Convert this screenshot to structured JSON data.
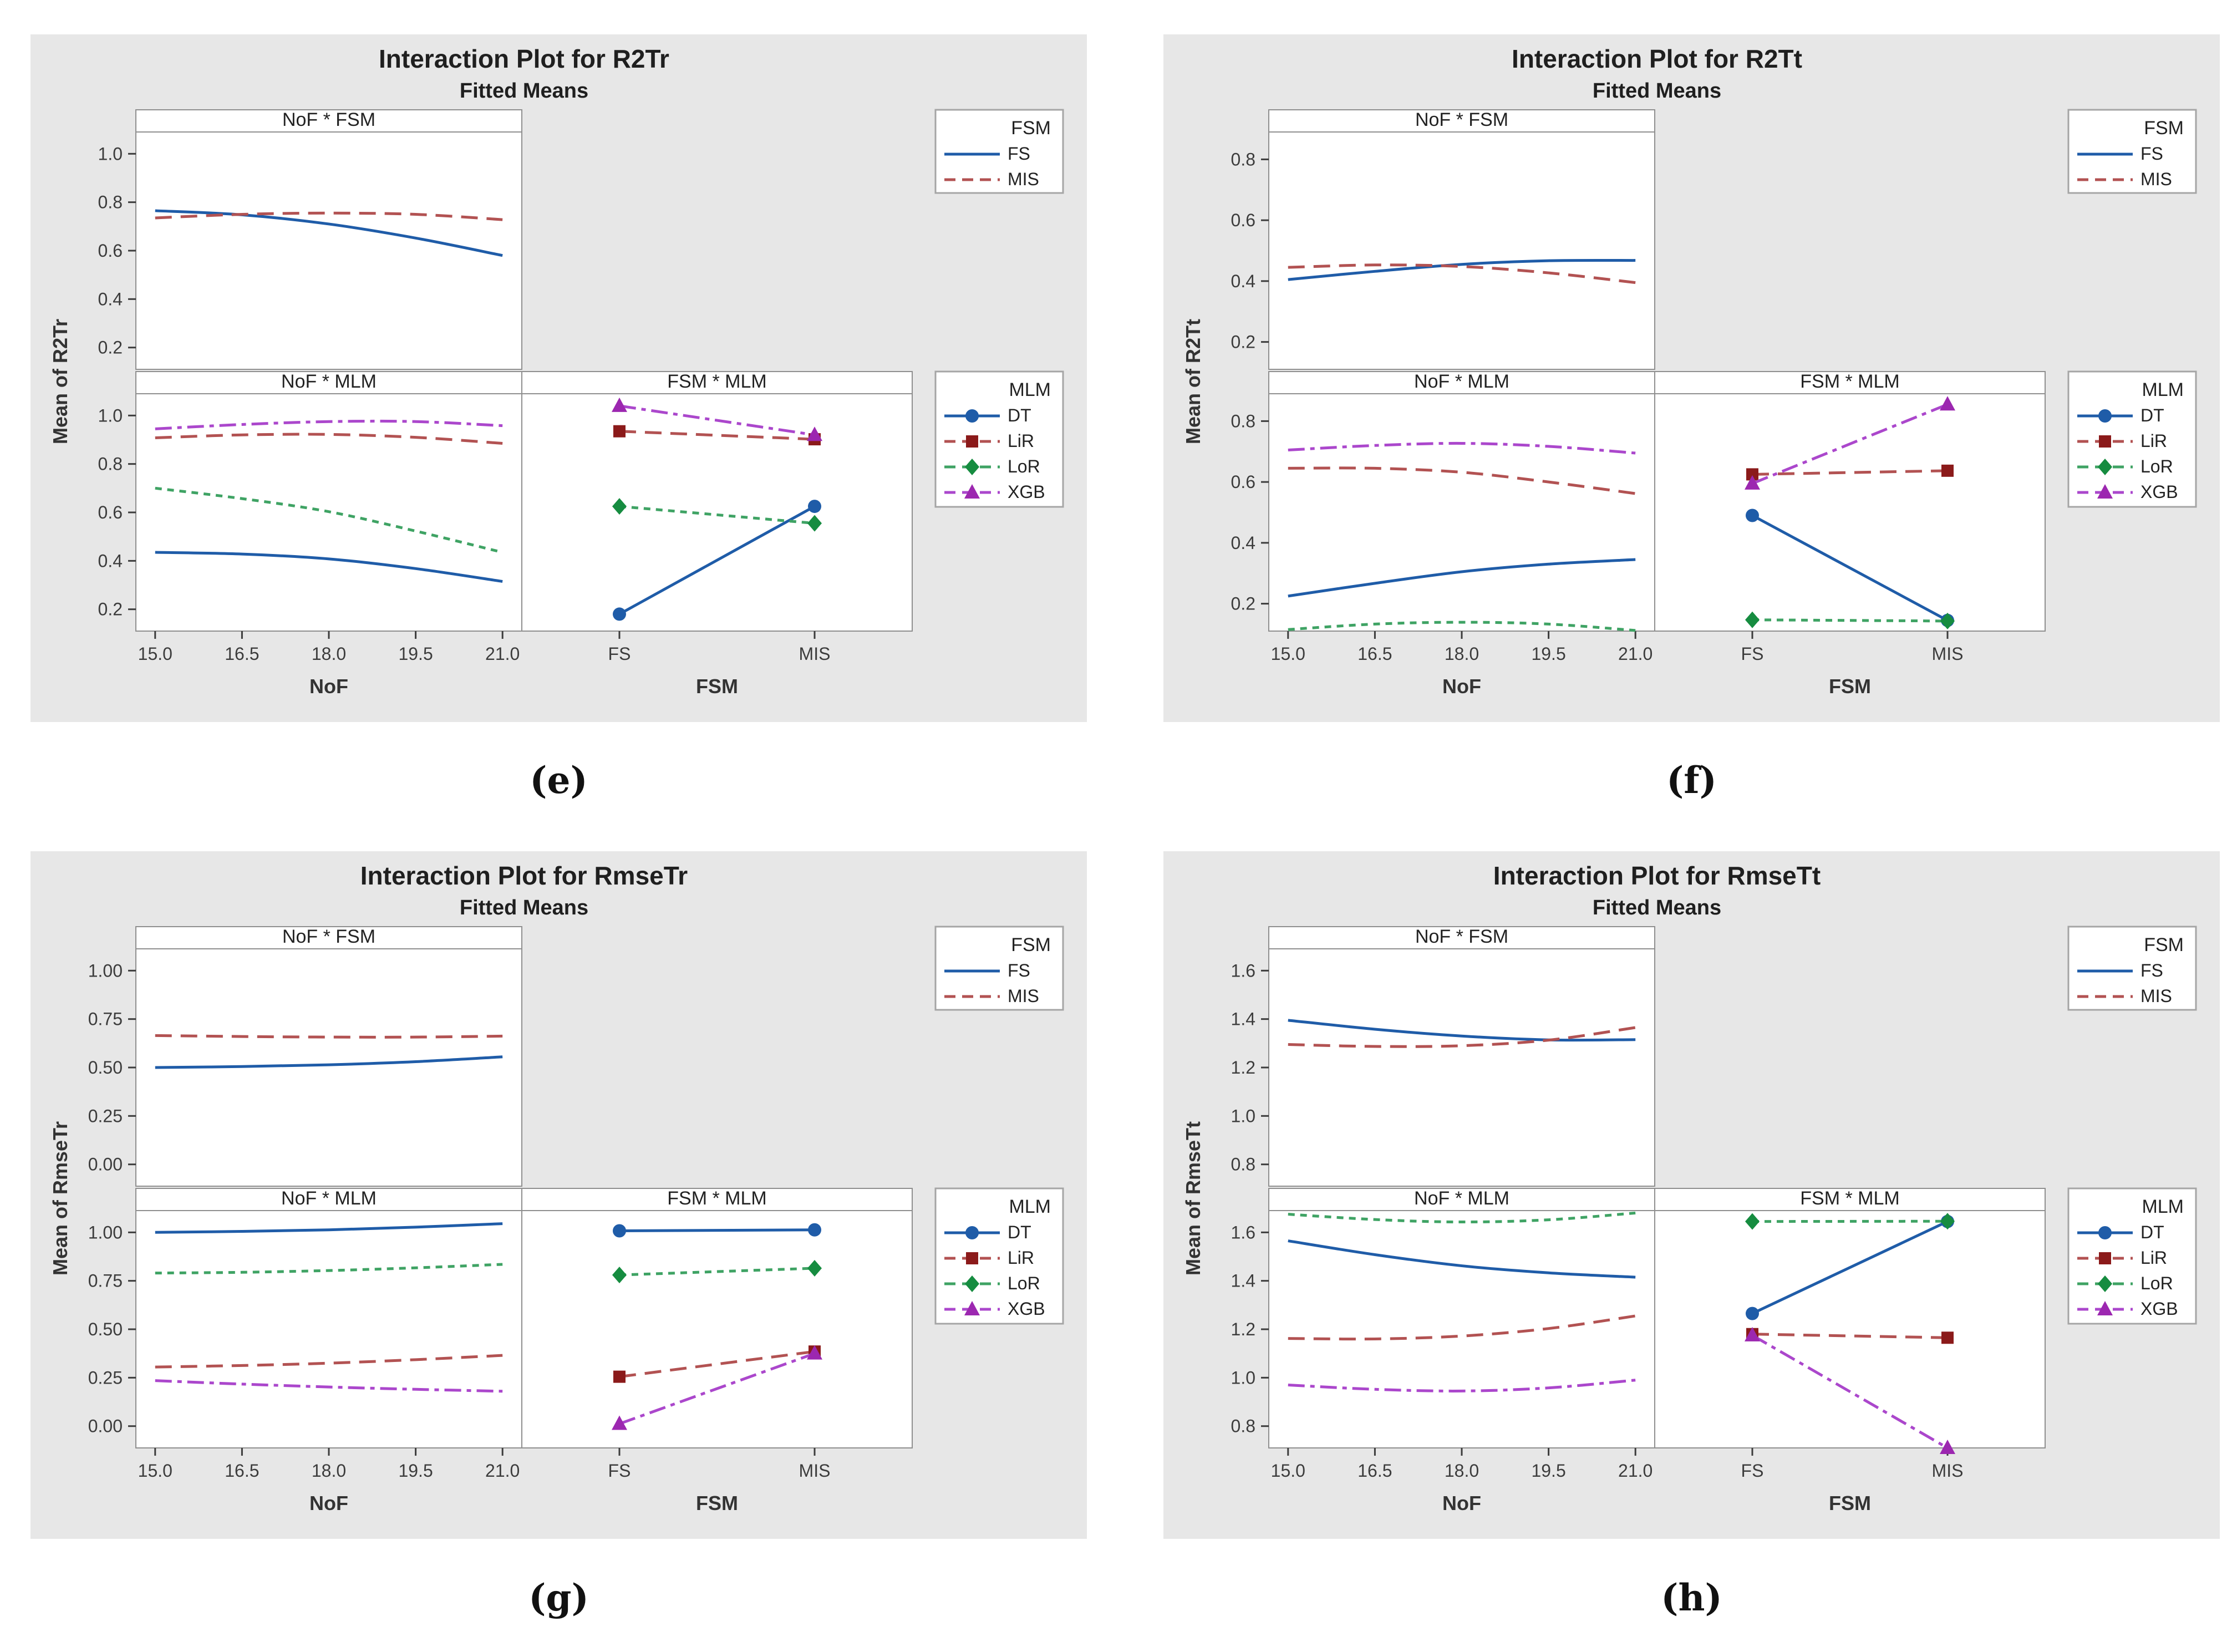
{
  "colors": {
    "panel_bg": "#e7e7e7",
    "plot_bg": "#ffffff",
    "border": "#8f8f8f",
    "tick_text": "#3c3c3c",
    "title_text": "#1f1f1f",
    "axis_label_text": "#333333"
  },
  "series_styles": {
    "FS": {
      "color": "#1F5CA8",
      "dash": "",
      "marker": "none"
    },
    "MIS": {
      "color": "#B25252",
      "dash": "30,16",
      "marker": "none"
    },
    "DT": {
      "color": "#1F5CA8",
      "dash": "",
      "marker": "circle",
      "marker_color": "#1F5CA8"
    },
    "LiR": {
      "color": "#B25252",
      "dash": "30,16",
      "marker": "square",
      "marker_color": "#8B1A1A"
    },
    "LoR": {
      "color": "#3FA364",
      "dash": "12,10",
      "marker": "diamond",
      "marker_color": "#168C40"
    },
    "XGB": {
      "color": "#AB47CC",
      "dash": "30,10,8,10",
      "marker": "triangle",
      "marker_color": "#9C27B0"
    }
  },
  "chart_data": [
    {
      "id": "e",
      "type": "line",
      "caption": "(e)",
      "title": "Interaction Plot for R2Tr",
      "subtitle": "Fitted Means",
      "y_axis_label": "Mean of R2Tr",
      "yticks": [
        0.2,
        0.4,
        0.6,
        0.8,
        1.0
      ],
      "ytick_labels": [
        "0.2",
        "0.4",
        "0.6",
        "0.8",
        "1.0"
      ],
      "x_numeric": {
        "label": "NoF",
        "values": [
          15,
          16.5,
          18,
          19.5,
          21
        ],
        "tick_labels": [
          "15.0",
          "16.5",
          "18.0",
          "19.5",
          "21.0"
        ]
      },
      "x_categorical": {
        "label": "FSM",
        "categories": [
          "FS",
          "MIS"
        ]
      },
      "facets": {
        "top": "NoF * FSM",
        "bottom_left": "NoF * MLM",
        "bottom_right": "FSM * MLM"
      },
      "legend_fsm": {
        "title": "FSM",
        "entries": [
          "FS",
          "MIS"
        ]
      },
      "legend_mlm": {
        "title": "MLM",
        "entries": [
          "DT",
          "LiR",
          "LoR",
          "XGB"
        ]
      },
      "series_top": {
        "FS": [
          0.765,
          0.748,
          0.71,
          0.652,
          0.58
        ],
        "MIS": [
          0.735,
          0.75,
          0.755,
          0.75,
          0.728
        ]
      },
      "series_bottom_left": {
        "DT": [
          0.435,
          0.428,
          0.408,
          0.368,
          0.315
        ],
        "LiR": [
          0.908,
          0.92,
          0.922,
          0.91,
          0.885
        ],
        "LoR": [
          0.7,
          0.657,
          0.603,
          0.523,
          0.435
        ],
        "XGB": [
          0.945,
          0.963,
          0.975,
          0.975,
          0.958
        ]
      },
      "series_bottom_right": {
        "DT": [
          0.18,
          0.625
        ],
        "LiR": [
          0.935,
          0.902
        ],
        "LoR": [
          0.625,
          0.555
        ],
        "XGB": [
          1.04,
          0.92
        ]
      }
    },
    {
      "id": "f",
      "type": "line",
      "caption": "(f)",
      "title": "Interaction Plot for R2Tt",
      "subtitle": "Fitted Means",
      "y_axis_label": "Mean of R2Tt",
      "yticks": [
        0.2,
        0.4,
        0.6,
        0.8
      ],
      "ytick_labels": [
        "0.2",
        "0.4",
        "0.6",
        "0.8"
      ],
      "x_numeric": {
        "label": "NoF",
        "values": [
          15,
          16.5,
          18,
          19.5,
          21
        ],
        "tick_labels": [
          "15.0",
          "16.5",
          "18.0",
          "19.5",
          "21.0"
        ]
      },
      "x_categorical": {
        "label": "FSM",
        "categories": [
          "FS",
          "MIS"
        ]
      },
      "facets": {
        "top": "NoF * FSM",
        "bottom_left": "NoF * MLM",
        "bottom_right": "FSM * MLM"
      },
      "legend_fsm": {
        "title": "FSM",
        "entries": [
          "FS",
          "MIS"
        ]
      },
      "legend_mlm": {
        "title": "MLM",
        "entries": [
          "DT",
          "LiR",
          "LoR",
          "XGB"
        ]
      },
      "series_top": {
        "FS": [
          0.405,
          0.432,
          0.455,
          0.467,
          0.468
        ],
        "MIS": [
          0.445,
          0.453,
          0.448,
          0.427,
          0.395
        ]
      },
      "series_bottom_left": {
        "DT": [
          0.225,
          0.267,
          0.305,
          0.33,
          0.345
        ],
        "LiR": [
          0.645,
          0.645,
          0.632,
          0.6,
          0.562
        ],
        "LoR": [
          0.115,
          0.133,
          0.139,
          0.133,
          0.112
        ],
        "XGB": [
          0.705,
          0.72,
          0.727,
          0.717,
          0.695
        ]
      },
      "series_bottom_right": {
        "DT": [
          0.49,
          0.145
        ],
        "LiR": [
          0.625,
          0.637
        ],
        "LoR": [
          0.147,
          0.143
        ],
        "XGB": [
          0.595,
          0.855
        ]
      }
    },
    {
      "id": "g",
      "type": "line",
      "caption": "(g)",
      "title": "Interaction Plot for RmseTr",
      "subtitle": "Fitted Means",
      "y_axis_label": "Mean of RmseTr",
      "yticks": [
        0.0,
        0.25,
        0.5,
        0.75,
        1.0
      ],
      "ytick_labels": [
        "0.00",
        "0.25",
        "0.50",
        "0.75",
        "1.00"
      ],
      "x_numeric": {
        "label": "NoF",
        "values": [
          15,
          16.5,
          18,
          19.5,
          21
        ],
        "tick_labels": [
          "15.0",
          "16.5",
          "18.0",
          "19.5",
          "21.0"
        ]
      },
      "x_categorical": {
        "label": "FSM",
        "categories": [
          "FS",
          "MIS"
        ]
      },
      "facets": {
        "top": "NoF * FSM",
        "bottom_left": "NoF * MLM",
        "bottom_right": "FSM * MLM"
      },
      "legend_fsm": {
        "title": "FSM",
        "entries": [
          "FS",
          "MIS"
        ]
      },
      "legend_mlm": {
        "title": "MLM",
        "entries": [
          "DT",
          "LiR",
          "LoR",
          "XGB"
        ]
      },
      "series_top": {
        "FS": [
          0.5,
          0.505,
          0.514,
          0.53,
          0.555
        ],
        "MIS": [
          0.665,
          0.66,
          0.657,
          0.657,
          0.662
        ]
      },
      "series_bottom_left": {
        "DT": [
          1.0,
          1.005,
          1.013,
          1.027,
          1.045
        ],
        "LiR": [
          0.305,
          0.313,
          0.325,
          0.343,
          0.365
        ],
        "LoR": [
          0.79,
          0.794,
          0.803,
          0.817,
          0.835
        ],
        "XGB": [
          0.235,
          0.217,
          0.202,
          0.19,
          0.18
        ]
      },
      "series_bottom_right": {
        "DT": [
          1.008,
          1.013
        ],
        "LiR": [
          0.255,
          0.385
        ],
        "LoR": [
          0.78,
          0.815
        ],
        "XGB": [
          0.012,
          0.375
        ]
      }
    },
    {
      "id": "h",
      "type": "line",
      "caption": "(h)",
      "title": "Interaction Plot for RmseTt",
      "subtitle": "Fitted Means",
      "y_axis_label": "Mean of RmseTt",
      "yticks": [
        0.8,
        1.0,
        1.2,
        1.4,
        1.6
      ],
      "ytick_labels": [
        "0.8",
        "1.0",
        "1.2",
        "1.4",
        "1.6"
      ],
      "x_numeric": {
        "label": "NoF",
        "values": [
          15,
          16.5,
          18,
          19.5,
          21
        ],
        "tick_labels": [
          "15.0",
          "16.5",
          "18.0",
          "19.5",
          "21.0"
        ]
      },
      "x_categorical": {
        "label": "FSM",
        "categories": [
          "FS",
          "MIS"
        ]
      },
      "facets": {
        "top": "NoF * FSM",
        "bottom_left": "NoF * MLM",
        "bottom_right": "FSM * MLM"
      },
      "legend_fsm": {
        "title": "FSM",
        "entries": [
          "FS",
          "MIS"
        ]
      },
      "legend_mlm": {
        "title": "MLM",
        "entries": [
          "DT",
          "LiR",
          "LoR",
          "XGB"
        ]
      },
      "series_top": {
        "FS": [
          1.395,
          1.358,
          1.33,
          1.314,
          1.315
        ],
        "MIS": [
          1.295,
          1.287,
          1.29,
          1.313,
          1.365
        ]
      },
      "series_bottom_left": {
        "DT": [
          1.565,
          1.508,
          1.462,
          1.433,
          1.415
        ],
        "LiR": [
          1.162,
          1.16,
          1.172,
          1.203,
          1.255
        ],
        "LoR": [
          1.675,
          1.653,
          1.643,
          1.652,
          1.68
        ],
        "XGB": [
          0.97,
          0.952,
          0.945,
          0.958,
          0.99
        ]
      },
      "series_bottom_right": {
        "DT": [
          1.265,
          1.645
        ],
        "LiR": [
          1.18,
          1.165
        ],
        "LoR": [
          1.645,
          1.646
        ],
        "XGB": [
          1.175,
          0.71
        ]
      }
    }
  ]
}
